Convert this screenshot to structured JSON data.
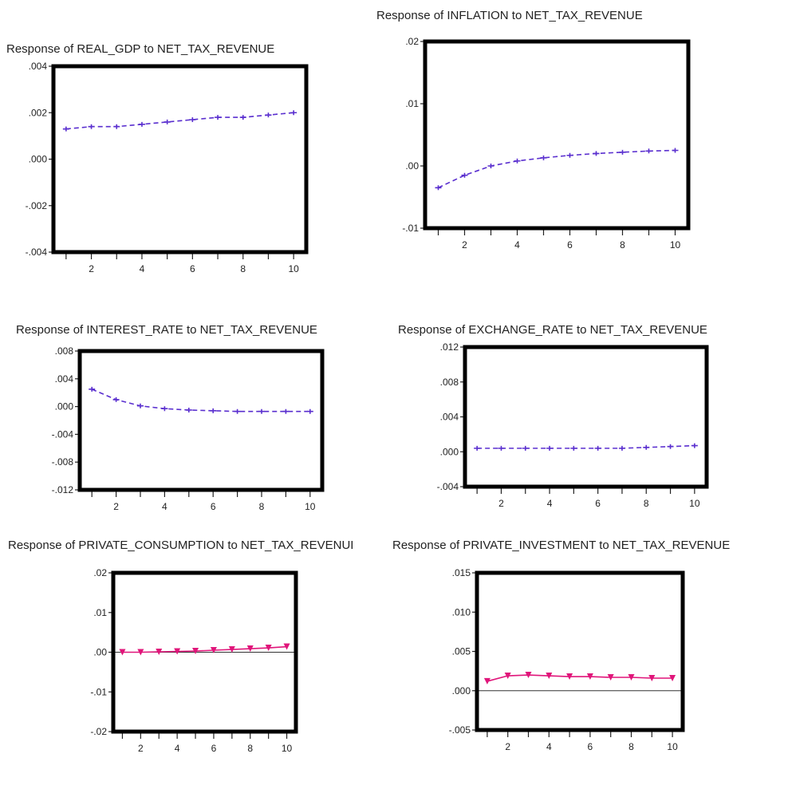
{
  "chart_data": [
    {
      "type": "line",
      "title": "Response of REAL_GDP to NET_TAX_REVENUE",
      "x": [
        1,
        2,
        3,
        4,
        5,
        6,
        7,
        8,
        9,
        10
      ],
      "x_ticks": [
        "2",
        "4",
        "6",
        "8",
        "10"
      ],
      "y_ticks": [
        ".004",
        ".002",
        ".000",
        "-.002",
        "-.004"
      ],
      "ylim": [
        -0.004,
        0.004
      ],
      "zero_line": false,
      "series": [
        {
          "values": [
            0.0013,
            0.0014,
            0.0014,
            0.0015,
            0.0016,
            0.0017,
            0.0018,
            0.0018,
            0.0019,
            0.002
          ],
          "color": "#5a2fcf"
        }
      ]
    },
    {
      "type": "line",
      "title": "Response of INFLATION to NET_TAX_REVENUE",
      "x": [
        1,
        2,
        3,
        4,
        5,
        6,
        7,
        8,
        9,
        10
      ],
      "x_ticks": [
        "2",
        "4",
        "6",
        "8",
        "10"
      ],
      "y_ticks": [
        ".02",
        ".01",
        ".00",
        "-.01"
      ],
      "ylim": [
        -0.01,
        0.02
      ],
      "zero_line": false,
      "series": [
        {
          "values": [
            -0.0035,
            -0.0015,
            0.0,
            0.0008,
            0.0013,
            0.0017,
            0.002,
            0.0022,
            0.0024,
            0.0025
          ],
          "color": "#5a2fcf"
        }
      ]
    },
    {
      "type": "line",
      "title": "Response of INTEREST_RATE to NET_TAX_REVENUE",
      "x": [
        1,
        2,
        3,
        4,
        5,
        6,
        7,
        8,
        9,
        10
      ],
      "x_ticks": [
        "2",
        "4",
        "6",
        "8",
        "10"
      ],
      "y_ticks": [
        ".008",
        ".004",
        ".000",
        "-.004",
        "-.008",
        "-.012"
      ],
      "ylim": [
        -0.012,
        0.008
      ],
      "zero_line": false,
      "series": [
        {
          "values": [
            0.0025,
            0.001,
            0.0001,
            -0.0003,
            -0.0005,
            -0.0006,
            -0.0007,
            -0.0007,
            -0.0007,
            -0.0007
          ],
          "color": "#5a2fcf"
        }
      ]
    },
    {
      "type": "line",
      "title": "Response of EXCHANGE_RATE to NET_TAX_REVENUE",
      "x": [
        1,
        2,
        3,
        4,
        5,
        6,
        7,
        8,
        9,
        10
      ],
      "x_ticks": [
        "2",
        "4",
        "6",
        "8",
        "10"
      ],
      "y_ticks": [
        ".012",
        ".008",
        ".004",
        ".000",
        "-.004"
      ],
      "ylim": [
        -0.004,
        0.012
      ],
      "zero_line": false,
      "series": [
        {
          "values": [
            0.0004,
            0.0004,
            0.0004,
            0.0004,
            0.0004,
            0.0004,
            0.0004,
            0.0005,
            0.0006,
            0.0007
          ],
          "color": "#5a2fcf"
        }
      ]
    },
    {
      "type": "line",
      "title": "Response of PRIVATE_CONSUMPTION to NET_TAX_REVENUI",
      "x": [
        1,
        2,
        3,
        4,
        5,
        6,
        7,
        8,
        9,
        10
      ],
      "x_ticks": [
        "2",
        "4",
        "6",
        "8",
        "10"
      ],
      "y_ticks": [
        ".02",
        ".01",
        ".00",
        "-.01",
        "-.02"
      ],
      "ylim": [
        -0.02,
        0.02
      ],
      "zero_line": true,
      "series": [
        {
          "values": [
            0.0,
            0.0,
            0.0001,
            0.0002,
            0.0003,
            0.0005,
            0.0007,
            0.0009,
            0.0011,
            0.0014
          ],
          "color": "#e0157a"
        }
      ]
    },
    {
      "type": "line",
      "title": "Response of PRIVATE_INVESTMENT to NET_TAX_REVENUE",
      "x": [
        1,
        2,
        3,
        4,
        5,
        6,
        7,
        8,
        9,
        10
      ],
      "x_ticks": [
        "2",
        "4",
        "6",
        "8",
        "10"
      ],
      "y_ticks": [
        ".015",
        ".010",
        ".005",
        ".000",
        "-.005"
      ],
      "ylim": [
        -0.005,
        0.015
      ],
      "zero_line": true,
      "series": [
        {
          "values": [
            0.0012,
            0.0019,
            0.002,
            0.0019,
            0.0018,
            0.0018,
            0.0017,
            0.0017,
            0.0016,
            0.0016
          ],
          "color": "#e0157a"
        }
      ]
    }
  ]
}
